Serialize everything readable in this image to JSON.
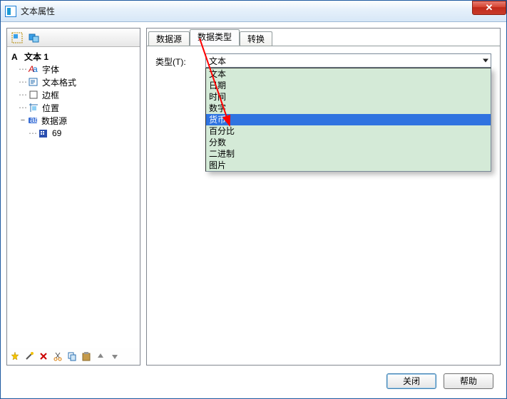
{
  "window": {
    "title": "文本属性",
    "close_glyph": "✕"
  },
  "left_toolbar": {
    "icon1_name": "select-tool-icon",
    "icon2_name": "group-tool-icon"
  },
  "tree": {
    "root": {
      "label": "文本 1"
    },
    "items": [
      {
        "label": "字体"
      },
      {
        "label": "文本格式"
      },
      {
        "label": "边框"
      },
      {
        "label": "位置"
      },
      {
        "label": "数据源"
      }
    ],
    "leaf": {
      "label": "69"
    }
  },
  "tabs": {
    "t1": "数据源",
    "t2": "数据类型",
    "t3": "转换"
  },
  "form": {
    "type_label": "类型(T):",
    "selected": "文本"
  },
  "dropdown": {
    "options": [
      "文本",
      "日期",
      "时间",
      "数字",
      "货币",
      "百分比",
      "分数",
      "二进制",
      "图片"
    ],
    "bg_color": "#d4ead7",
    "highlight_index": 4,
    "highlight_bg": "#2f73e0",
    "highlight_fg": "#ffffff"
  },
  "buttons": {
    "close": "关闭",
    "help": "帮助"
  },
  "colors": {
    "titlebar_top": "#fdfefe",
    "titlebar_bottom": "#d7e7f7",
    "panel_border": "#828790"
  }
}
